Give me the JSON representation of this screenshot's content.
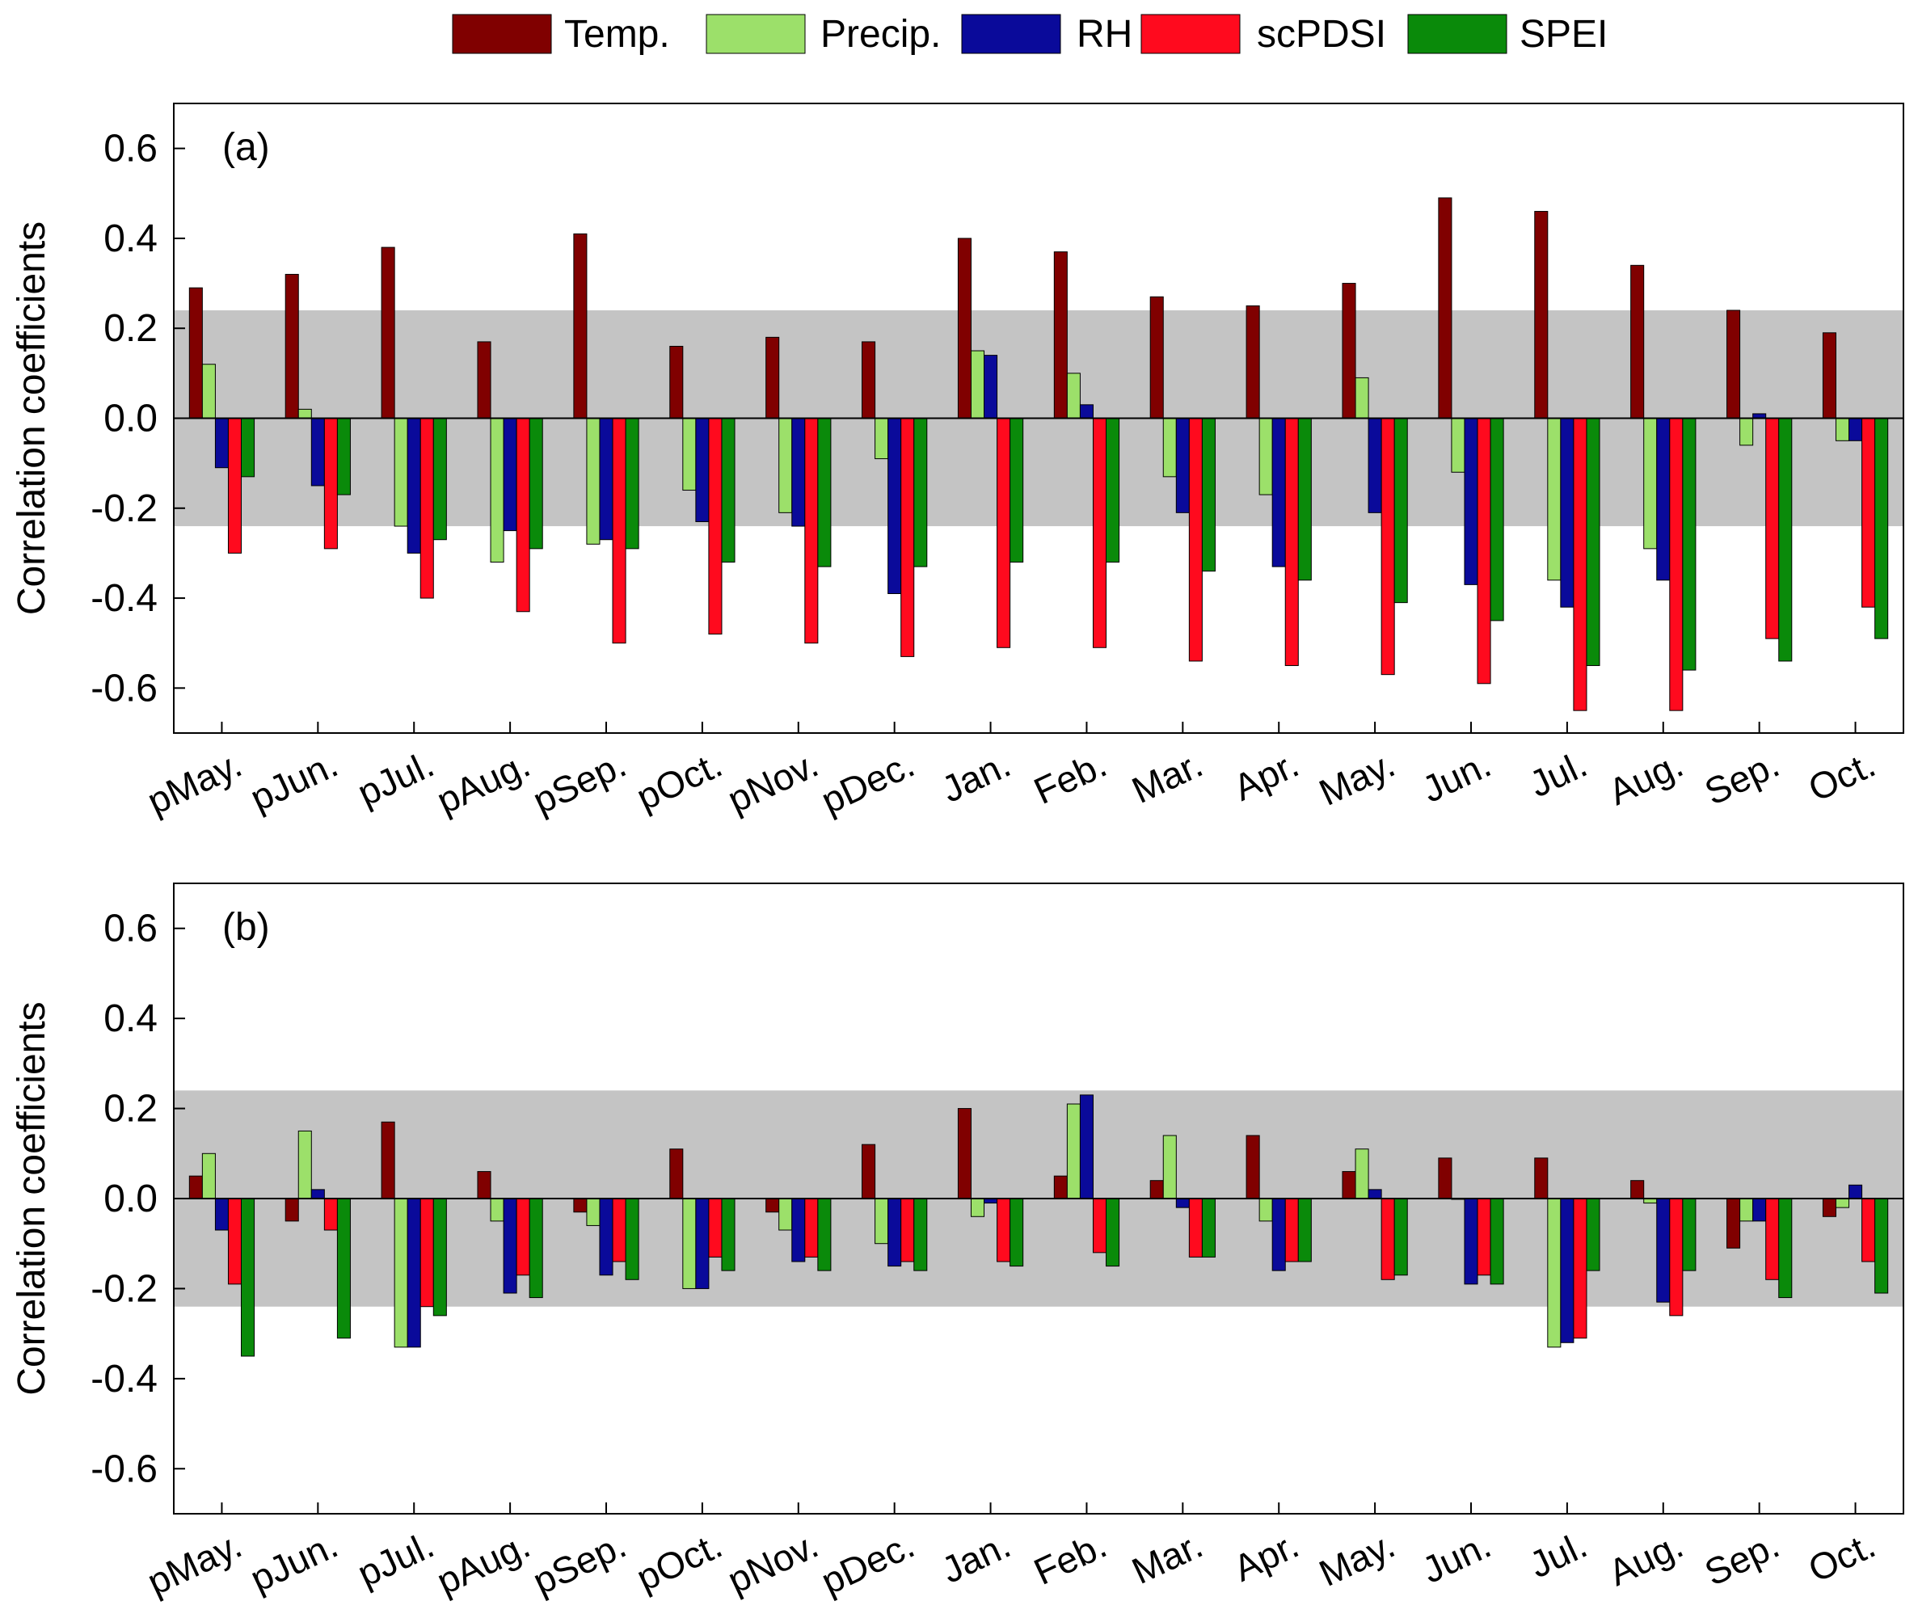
{
  "legend": [
    {
      "name": "Temp.",
      "color": "#800000"
    },
    {
      "name": "Precip.",
      "color": "#9CE06A"
    },
    {
      "name": "RH",
      "color": "#0A0A9A"
    },
    {
      "name": "scPDSI",
      "color": "#FF0A1E"
    },
    {
      "name": "SPEI",
      "color": "#0A8A0A"
    }
  ],
  "chart_data": [
    {
      "type": "bar",
      "panel": "(a)",
      "ylabel": "Correlation coefficients",
      "ylim": [
        -0.7,
        0.7
      ],
      "yticks": [
        0.6,
        0.4,
        0.2,
        0.0,
        -0.2,
        -0.4,
        -0.6
      ],
      "ytick_labels": [
        "0.6",
        "0.4",
        "0.2",
        "0.0",
        "-0.2",
        "-0.4",
        "-0.6"
      ],
      "significance_band": [
        -0.24,
        0.24
      ],
      "categories": [
        "pMay.",
        "pJun.",
        "pJul.",
        "pAug.",
        "pSep.",
        "pOct.",
        "pNov.",
        "pDec.",
        "Jan.",
        "Feb.",
        "Mar.",
        "Apr.",
        "May.",
        "Jun.",
        "Jul.",
        "Aug.",
        "Sep.",
        "Oct."
      ],
      "series": [
        {
          "name": "Temp.",
          "values": [
            0.29,
            0.32,
            0.38,
            0.17,
            0.41,
            0.16,
            0.18,
            0.17,
            0.4,
            0.37,
            0.27,
            0.25,
            0.3,
            0.49,
            0.46,
            0.34,
            0.24,
            0.19
          ]
        },
        {
          "name": "Precip.",
          "values": [
            0.12,
            0.02,
            -0.24,
            -0.32,
            -0.28,
            -0.16,
            -0.21,
            -0.09,
            0.15,
            0.1,
            -0.13,
            -0.17,
            0.09,
            -0.12,
            -0.36,
            -0.29,
            -0.06,
            -0.05
          ]
        },
        {
          "name": "RH",
          "values": [
            -0.11,
            -0.15,
            -0.3,
            -0.25,
            -0.27,
            -0.23,
            -0.24,
            -0.39,
            0.14,
            0.03,
            -0.21,
            -0.33,
            -0.21,
            -0.37,
            -0.42,
            -0.36,
            0.01,
            -0.05
          ]
        },
        {
          "name": "scPDSI",
          "values": [
            -0.3,
            -0.29,
            -0.4,
            -0.43,
            -0.5,
            -0.48,
            -0.5,
            -0.53,
            -0.51,
            -0.51,
            -0.54,
            -0.55,
            -0.57,
            -0.59,
            -0.65,
            -0.65,
            -0.49,
            -0.42
          ]
        },
        {
          "name": "SPEI",
          "values": [
            -0.13,
            -0.17,
            -0.27,
            -0.29,
            -0.29,
            -0.32,
            -0.33,
            -0.33,
            -0.32,
            -0.32,
            -0.34,
            -0.36,
            -0.41,
            -0.45,
            -0.55,
            -0.56,
            -0.54,
            -0.49
          ]
        }
      ]
    },
    {
      "type": "bar",
      "panel": "(b)",
      "ylabel": "Correlation coefficients",
      "ylim": [
        -0.7,
        0.7
      ],
      "yticks": [
        0.6,
        0.4,
        0.2,
        0.0,
        -0.2,
        -0.4,
        -0.6
      ],
      "ytick_labels": [
        "0.6",
        "0.4",
        "0.2",
        "0.0",
        "-0.2",
        "-0.4",
        "-0.6"
      ],
      "significance_band": [
        -0.24,
        0.24
      ],
      "categories": [
        "pMay.",
        "pJun.",
        "pJul.",
        "pAug.",
        "pSep.",
        "pOct.",
        "pNov.",
        "pDec.",
        "Jan.",
        "Feb.",
        "Mar.",
        "Apr.",
        "May.",
        "Jun.",
        "Jul.",
        "Aug.",
        "Sep.",
        "Oct."
      ],
      "series": [
        {
          "name": "Temp.",
          "values": [
            0.05,
            -0.05,
            0.17,
            0.06,
            -0.03,
            0.11,
            -0.03,
            0.12,
            0.2,
            0.05,
            0.04,
            0.14,
            0.06,
            0.09,
            0.09,
            0.04,
            -0.11,
            -0.04
          ]
        },
        {
          "name": "Precip.",
          "values": [
            0.1,
            0.15,
            -0.33,
            -0.05,
            -0.06,
            -0.2,
            -0.07,
            -0.1,
            -0.04,
            0.21,
            0.14,
            -0.05,
            0.11,
            0.0,
            -0.33,
            -0.01,
            -0.05,
            -0.02
          ]
        },
        {
          "name": "RH",
          "values": [
            -0.07,
            0.02,
            -0.33,
            -0.21,
            -0.17,
            -0.2,
            -0.14,
            -0.15,
            -0.01,
            0.23,
            -0.02,
            -0.16,
            0.02,
            -0.19,
            -0.32,
            -0.23,
            -0.05,
            0.03
          ]
        },
        {
          "name": "scPDSI",
          "values": [
            -0.19,
            -0.07,
            -0.24,
            -0.17,
            -0.14,
            -0.13,
            -0.13,
            -0.14,
            -0.14,
            -0.12,
            -0.13,
            -0.14,
            -0.18,
            -0.17,
            -0.31,
            -0.26,
            -0.18,
            -0.14
          ]
        },
        {
          "name": "SPEI",
          "values": [
            -0.35,
            -0.31,
            -0.26,
            -0.22,
            -0.18,
            -0.16,
            -0.16,
            -0.16,
            -0.15,
            -0.15,
            -0.13,
            -0.14,
            -0.17,
            -0.19,
            -0.16,
            -0.16,
            -0.22,
            -0.21
          ]
        }
      ]
    }
  ]
}
